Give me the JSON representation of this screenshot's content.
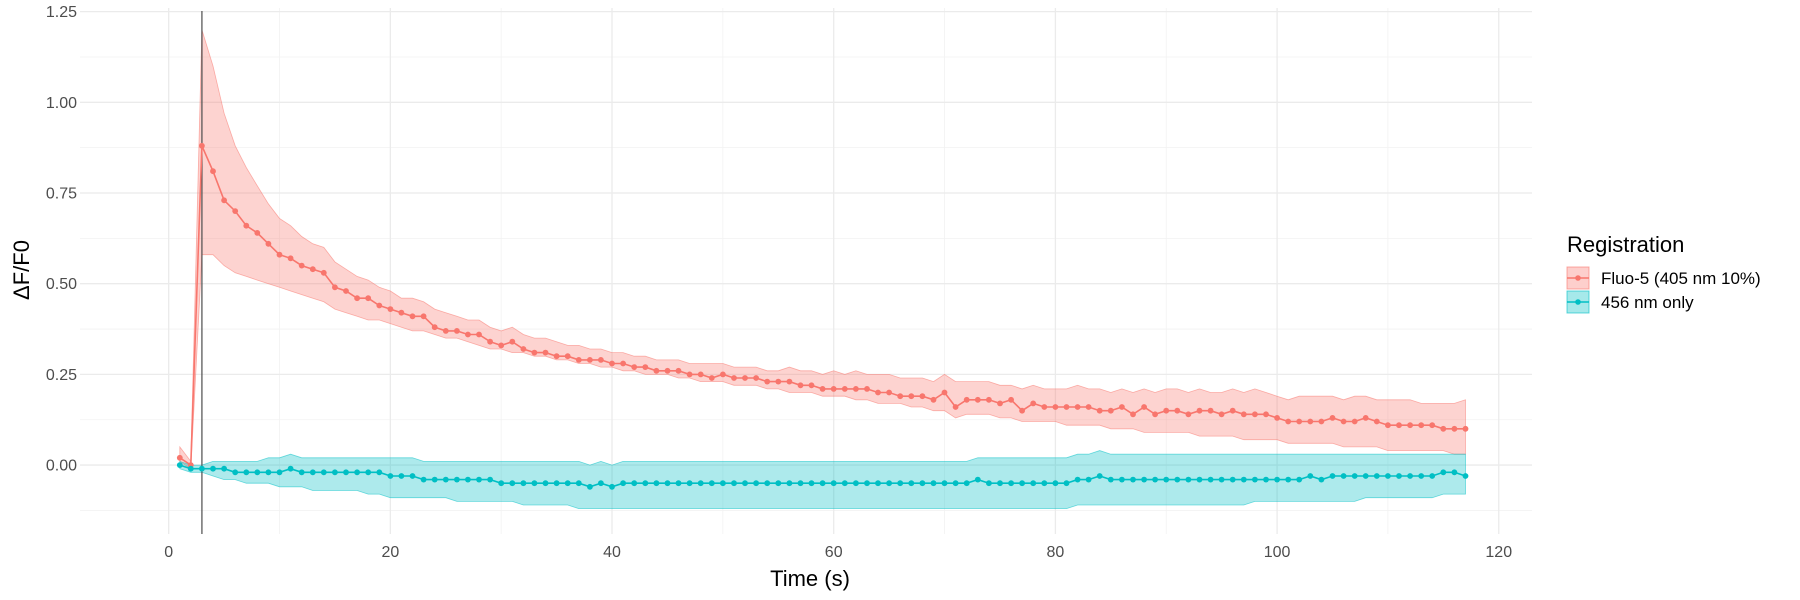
{
  "chart_data": {
    "type": "line",
    "title": "",
    "xlabel": "Time (s)",
    "ylabel": "ΔF/F0",
    "xlim": [
      -8,
      123
    ],
    "ylim": [
      -0.19,
      1.26
    ],
    "x_ticks": [
      0,
      20,
      40,
      60,
      80,
      100,
      120
    ],
    "x_tick_labels": [
      "0",
      "20",
      "40",
      "60",
      "80",
      "100",
      "120"
    ],
    "y_ticks": [
      0,
      0.25,
      0.5,
      0.75,
      1.0,
      1.25
    ],
    "y_tick_labels": [
      "0.00",
      "0.25",
      "0.50",
      "0.75",
      "1.00",
      "1.25"
    ],
    "grid": true,
    "vline_x": 3,
    "legend": {
      "title": "Registration",
      "position": "right",
      "entries": [
        "Fluo-5 (405 nm 10%)",
        "456 nm only"
      ]
    },
    "series": [
      {
        "name": "Fluo-5 (405 nm 10%)",
        "color": "#F8766D",
        "x": [
          1,
          2,
          3,
          4,
          5,
          6,
          7,
          8,
          9,
          10,
          11,
          12,
          13,
          14,
          15,
          16,
          17,
          18,
          19,
          20,
          21,
          22,
          23,
          24,
          25,
          26,
          27,
          28,
          29,
          30,
          31,
          32,
          33,
          34,
          35,
          36,
          37,
          38,
          39,
          40,
          41,
          42,
          43,
          44,
          45,
          46,
          47,
          48,
          49,
          50,
          51,
          52,
          53,
          54,
          55,
          56,
          57,
          58,
          59,
          60,
          61,
          62,
          63,
          64,
          65,
          66,
          67,
          68,
          69,
          70,
          71,
          72,
          73,
          74,
          75,
          76,
          77,
          78,
          79,
          80,
          81,
          82,
          83,
          84,
          85,
          86,
          87,
          88,
          89,
          90,
          91,
          92,
          93,
          94,
          95,
          96,
          97,
          98,
          99,
          100,
          101,
          102,
          103,
          104,
          105,
          106,
          107,
          108,
          109,
          110,
          111,
          112,
          113,
          114,
          115,
          116,
          117
        ],
        "y": [
          0.02,
          0.0,
          0.88,
          0.81,
          0.73,
          0.7,
          0.66,
          0.64,
          0.61,
          0.58,
          0.57,
          0.55,
          0.54,
          0.53,
          0.49,
          0.48,
          0.46,
          0.46,
          0.44,
          0.43,
          0.42,
          0.41,
          0.41,
          0.38,
          0.37,
          0.37,
          0.36,
          0.36,
          0.34,
          0.33,
          0.34,
          0.32,
          0.31,
          0.31,
          0.3,
          0.3,
          0.29,
          0.29,
          0.29,
          0.28,
          0.28,
          0.27,
          0.27,
          0.26,
          0.26,
          0.26,
          0.25,
          0.25,
          0.24,
          0.25,
          0.24,
          0.24,
          0.24,
          0.23,
          0.23,
          0.23,
          0.22,
          0.22,
          0.21,
          0.21,
          0.21,
          0.21,
          0.21,
          0.2,
          0.2,
          0.19,
          0.19,
          0.19,
          0.18,
          0.2,
          0.16,
          0.18,
          0.18,
          0.18,
          0.17,
          0.18,
          0.15,
          0.17,
          0.16,
          0.16,
          0.16,
          0.16,
          0.16,
          0.15,
          0.15,
          0.16,
          0.14,
          0.16,
          0.14,
          0.15,
          0.15,
          0.14,
          0.15,
          0.15,
          0.14,
          0.15,
          0.14,
          0.14,
          0.14,
          0.13,
          0.12,
          0.12,
          0.12,
          0.12,
          0.13,
          0.12,
          0.12,
          0.13,
          0.12,
          0.11,
          0.11,
          0.11,
          0.11,
          0.11,
          0.1,
          0.1,
          0.1
        ],
        "lower": [
          0.01,
          -0.01,
          0.58,
          0.58,
          0.55,
          0.53,
          0.52,
          0.51,
          0.5,
          0.49,
          0.48,
          0.47,
          0.46,
          0.45,
          0.43,
          0.42,
          0.41,
          0.4,
          0.4,
          0.39,
          0.38,
          0.37,
          0.37,
          0.36,
          0.35,
          0.35,
          0.34,
          0.33,
          0.32,
          0.32,
          0.31,
          0.31,
          0.3,
          0.3,
          0.29,
          0.29,
          0.28,
          0.28,
          0.27,
          0.27,
          0.26,
          0.26,
          0.25,
          0.25,
          0.25,
          0.24,
          0.24,
          0.23,
          0.23,
          0.23,
          0.22,
          0.22,
          0.22,
          0.21,
          0.21,
          0.2,
          0.2,
          0.2,
          0.19,
          0.19,
          0.19,
          0.18,
          0.18,
          0.17,
          0.17,
          0.17,
          0.16,
          0.16,
          0.15,
          0.15,
          0.13,
          0.14,
          0.14,
          0.14,
          0.13,
          0.13,
          0.12,
          0.12,
          0.12,
          0.12,
          0.11,
          0.11,
          0.11,
          0.11,
          0.1,
          0.1,
          0.1,
          0.09,
          0.09,
          0.09,
          0.09,
          0.09,
          0.08,
          0.08,
          0.08,
          0.08,
          0.07,
          0.07,
          0.07,
          0.07,
          0.06,
          0.06,
          0.06,
          0.06,
          0.06,
          0.05,
          0.05,
          0.05,
          0.05,
          0.04,
          0.04,
          0.04,
          0.04,
          0.04,
          0.04,
          0.03,
          0.03
        ],
        "upper": [
          0.05,
          0.01,
          1.2,
          1.1,
          0.97,
          0.88,
          0.82,
          0.77,
          0.72,
          0.68,
          0.66,
          0.63,
          0.61,
          0.6,
          0.56,
          0.54,
          0.52,
          0.51,
          0.49,
          0.48,
          0.46,
          0.46,
          0.45,
          0.43,
          0.42,
          0.41,
          0.4,
          0.4,
          0.38,
          0.37,
          0.38,
          0.36,
          0.35,
          0.35,
          0.34,
          0.33,
          0.33,
          0.32,
          0.32,
          0.31,
          0.31,
          0.3,
          0.3,
          0.29,
          0.29,
          0.29,
          0.28,
          0.28,
          0.28,
          0.28,
          0.27,
          0.27,
          0.27,
          0.26,
          0.26,
          0.27,
          0.26,
          0.26,
          0.25,
          0.26,
          0.25,
          0.26,
          0.25,
          0.25,
          0.25,
          0.24,
          0.24,
          0.24,
          0.23,
          0.25,
          0.23,
          0.23,
          0.23,
          0.23,
          0.22,
          0.22,
          0.21,
          0.22,
          0.21,
          0.21,
          0.21,
          0.22,
          0.21,
          0.21,
          0.2,
          0.21,
          0.2,
          0.21,
          0.2,
          0.21,
          0.21,
          0.2,
          0.21,
          0.2,
          0.2,
          0.21,
          0.2,
          0.21,
          0.2,
          0.19,
          0.18,
          0.19,
          0.19,
          0.19,
          0.19,
          0.18,
          0.19,
          0.19,
          0.18,
          0.18,
          0.18,
          0.18,
          0.17,
          0.17,
          0.17,
          0.17,
          0.18
        ]
      },
      {
        "name": "456 nm only",
        "color": "#00BFC4",
        "x": [
          1,
          2,
          3,
          4,
          5,
          6,
          7,
          8,
          9,
          10,
          11,
          12,
          13,
          14,
          15,
          16,
          17,
          18,
          19,
          20,
          21,
          22,
          23,
          24,
          25,
          26,
          27,
          28,
          29,
          30,
          31,
          32,
          33,
          34,
          35,
          36,
          37,
          38,
          39,
          40,
          41,
          42,
          43,
          44,
          45,
          46,
          47,
          48,
          49,
          50,
          51,
          52,
          53,
          54,
          55,
          56,
          57,
          58,
          59,
          60,
          61,
          62,
          63,
          64,
          65,
          66,
          67,
          68,
          69,
          70,
          71,
          72,
          73,
          74,
          75,
          76,
          77,
          78,
          79,
          80,
          81,
          82,
          83,
          84,
          85,
          86,
          87,
          88,
          89,
          90,
          91,
          92,
          93,
          94,
          95,
          96,
          97,
          98,
          99,
          100,
          101,
          102,
          103,
          104,
          105,
          106,
          107,
          108,
          109,
          110,
          111,
          112,
          113,
          114,
          115,
          116,
          117
        ],
        "y": [
          0.0,
          -0.01,
          -0.01,
          -0.01,
          -0.01,
          -0.02,
          -0.02,
          -0.02,
          -0.02,
          -0.02,
          -0.01,
          -0.02,
          -0.02,
          -0.02,
          -0.02,
          -0.02,
          -0.02,
          -0.02,
          -0.02,
          -0.03,
          -0.03,
          -0.03,
          -0.04,
          -0.04,
          -0.04,
          -0.04,
          -0.04,
          -0.04,
          -0.04,
          -0.05,
          -0.05,
          -0.05,
          -0.05,
          -0.05,
          -0.05,
          -0.05,
          -0.05,
          -0.06,
          -0.05,
          -0.06,
          -0.05,
          -0.05,
          -0.05,
          -0.05,
          -0.05,
          -0.05,
          -0.05,
          -0.05,
          -0.05,
          -0.05,
          -0.05,
          -0.05,
          -0.05,
          -0.05,
          -0.05,
          -0.05,
          -0.05,
          -0.05,
          -0.05,
          -0.05,
          -0.05,
          -0.05,
          -0.05,
          -0.05,
          -0.05,
          -0.05,
          -0.05,
          -0.05,
          -0.05,
          -0.05,
          -0.05,
          -0.05,
          -0.04,
          -0.05,
          -0.05,
          -0.05,
          -0.05,
          -0.05,
          -0.05,
          -0.05,
          -0.05,
          -0.04,
          -0.04,
          -0.03,
          -0.04,
          -0.04,
          -0.04,
          -0.04,
          -0.04,
          -0.04,
          -0.04,
          -0.04,
          -0.04,
          -0.04,
          -0.04,
          -0.04,
          -0.04,
          -0.04,
          -0.04,
          -0.04,
          -0.04,
          -0.04,
          -0.03,
          -0.04,
          -0.03,
          -0.03,
          -0.03,
          -0.03,
          -0.03,
          -0.03,
          -0.03,
          -0.03,
          -0.03,
          -0.03,
          -0.02,
          -0.02,
          -0.03
        ],
        "lower": [
          -0.01,
          -0.02,
          -0.02,
          -0.03,
          -0.04,
          -0.04,
          -0.05,
          -0.05,
          -0.05,
          -0.06,
          -0.06,
          -0.06,
          -0.07,
          -0.07,
          -0.07,
          -0.07,
          -0.07,
          -0.08,
          -0.08,
          -0.09,
          -0.09,
          -0.09,
          -0.09,
          -0.09,
          -0.09,
          -0.1,
          -0.1,
          -0.1,
          -0.1,
          -0.1,
          -0.1,
          -0.11,
          -0.11,
          -0.11,
          -0.11,
          -0.11,
          -0.12,
          -0.12,
          -0.12,
          -0.12,
          -0.12,
          -0.12,
          -0.12,
          -0.12,
          -0.12,
          -0.12,
          -0.12,
          -0.12,
          -0.12,
          -0.12,
          -0.12,
          -0.12,
          -0.12,
          -0.12,
          -0.12,
          -0.12,
          -0.12,
          -0.12,
          -0.12,
          -0.12,
          -0.12,
          -0.12,
          -0.12,
          -0.12,
          -0.12,
          -0.12,
          -0.12,
          -0.12,
          -0.12,
          -0.12,
          -0.12,
          -0.12,
          -0.12,
          -0.12,
          -0.12,
          -0.12,
          -0.12,
          -0.12,
          -0.12,
          -0.12,
          -0.12,
          -0.11,
          -0.11,
          -0.11,
          -0.11,
          -0.11,
          -0.11,
          -0.11,
          -0.11,
          -0.11,
          -0.11,
          -0.11,
          -0.11,
          -0.11,
          -0.11,
          -0.11,
          -0.11,
          -0.1,
          -0.1,
          -0.1,
          -0.1,
          -0.1,
          -0.1,
          -0.1,
          -0.1,
          -0.1,
          -0.1,
          -0.09,
          -0.09,
          -0.09,
          -0.09,
          -0.09,
          -0.09,
          -0.09,
          -0.08,
          -0.08,
          -0.08
        ],
        "upper": [
          0.01,
          0.0,
          0.0,
          0.01,
          0.01,
          0.01,
          0.01,
          0.01,
          0.02,
          0.02,
          0.03,
          0.02,
          0.02,
          0.02,
          0.02,
          0.02,
          0.02,
          0.02,
          0.02,
          0.02,
          0.02,
          0.02,
          0.01,
          0.01,
          0.01,
          0.01,
          0.01,
          0.01,
          0.01,
          0.01,
          0.01,
          0.01,
          0.01,
          0.01,
          0.01,
          0.01,
          0.01,
          0.0,
          0.01,
          0.0,
          0.01,
          0.01,
          0.01,
          0.01,
          0.01,
          0.01,
          0.01,
          0.01,
          0.01,
          0.01,
          0.01,
          0.01,
          0.01,
          0.01,
          0.01,
          0.01,
          0.01,
          0.01,
          0.01,
          0.01,
          0.01,
          0.01,
          0.01,
          0.01,
          0.01,
          0.01,
          0.01,
          0.01,
          0.01,
          0.01,
          0.01,
          0.01,
          0.02,
          0.02,
          0.02,
          0.02,
          0.02,
          0.02,
          0.02,
          0.02,
          0.02,
          0.03,
          0.03,
          0.04,
          0.03,
          0.03,
          0.03,
          0.03,
          0.03,
          0.03,
          0.03,
          0.03,
          0.03,
          0.03,
          0.03,
          0.03,
          0.03,
          0.03,
          0.03,
          0.03,
          0.03,
          0.03,
          0.03,
          0.03,
          0.03,
          0.03,
          0.03,
          0.03,
          0.03,
          0.03,
          0.03,
          0.03,
          0.03,
          0.03,
          0.03,
          0.03,
          0.03
        ]
      }
    ]
  }
}
